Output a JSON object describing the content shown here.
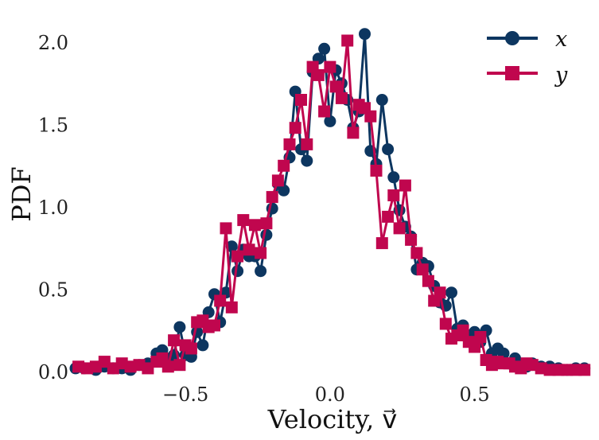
{
  "chart_data": {
    "type": "line",
    "xlabel": "Velocity, v⃗",
    "ylabel": "PDF",
    "xlim": [
      -0.88,
      0.9
    ],
    "ylim": [
      0,
      2.15
    ],
    "xticks": [
      -0.5,
      0.0,
      0.5
    ],
    "xtick_labels": [
      "−0.5",
      "0.0",
      "0.5"
    ],
    "yticks": [
      0.0,
      0.5,
      1.0,
      1.5,
      2.0
    ],
    "ytick_labels": [
      "0.0",
      "0.5",
      "1.0",
      "1.5",
      "2.0"
    ],
    "grid": false,
    "legend_position": "top-right",
    "series": [
      {
        "name": "x",
        "color": "#0d3660",
        "marker": "circle",
        "x": [
          -0.88,
          -0.85,
          -0.81,
          -0.78,
          -0.75,
          -0.72,
          -0.69,
          -0.66,
          -0.63,
          -0.6,
          -0.58,
          -0.56,
          -0.54,
          -0.52,
          -0.5,
          -0.48,
          -0.46,
          -0.44,
          -0.42,
          -0.4,
          -0.38,
          -0.36,
          -0.34,
          -0.32,
          -0.3,
          -0.28,
          -0.26,
          -0.24,
          -0.22,
          -0.2,
          -0.18,
          -0.16,
          -0.14,
          -0.12,
          -0.1,
          -0.08,
          -0.06,
          -0.04,
          -0.02,
          0.0,
          0.02,
          0.04,
          0.06,
          0.08,
          0.1,
          0.12,
          0.14,
          0.16,
          0.18,
          0.2,
          0.22,
          0.24,
          0.26,
          0.28,
          0.3,
          0.32,
          0.34,
          0.36,
          0.38,
          0.4,
          0.42,
          0.44,
          0.46,
          0.48,
          0.5,
          0.52,
          0.54,
          0.56,
          0.58,
          0.6,
          0.62,
          0.64,
          0.66,
          0.68,
          0.7,
          0.73,
          0.76,
          0.79,
          0.82,
          0.85,
          0.88
        ],
        "y": [
          0.02,
          0.02,
          0.01,
          0.03,
          0.02,
          0.02,
          0.01,
          0.04,
          0.05,
          0.11,
          0.13,
          0.07,
          0.1,
          0.27,
          0.1,
          0.09,
          0.24,
          0.16,
          0.36,
          0.47,
          0.3,
          0.48,
          0.76,
          0.61,
          0.74,
          0.7,
          0.7,
          0.61,
          0.83,
          0.99,
          1.14,
          1.1,
          1.3,
          1.7,
          1.35,
          1.28,
          1.82,
          1.9,
          1.96,
          1.52,
          1.83,
          1.75,
          1.65,
          1.48,
          1.58,
          2.05,
          1.34,
          1.26,
          1.65,
          1.35,
          1.18,
          0.98,
          0.88,
          0.82,
          0.62,
          0.66,
          0.64,
          0.52,
          0.42,
          0.4,
          0.48,
          0.26,
          0.28,
          0.22,
          0.24,
          0.18,
          0.25,
          0.11,
          0.14,
          0.11,
          0.05,
          0.08,
          0.04,
          0.03,
          0.05,
          0.03,
          0.03,
          0.02,
          0.01,
          0.02,
          0.02
        ]
      },
      {
        "name": "y",
        "color": "#c0064e",
        "marker": "square",
        "x": [
          -0.87,
          -0.84,
          -0.81,
          -0.78,
          -0.75,
          -0.72,
          -0.69,
          -0.66,
          -0.63,
          -0.6,
          -0.58,
          -0.56,
          -0.54,
          -0.52,
          -0.5,
          -0.48,
          -0.46,
          -0.44,
          -0.42,
          -0.4,
          -0.38,
          -0.36,
          -0.34,
          -0.32,
          -0.3,
          -0.28,
          -0.26,
          -0.24,
          -0.22,
          -0.2,
          -0.18,
          -0.16,
          -0.14,
          -0.12,
          -0.1,
          -0.08,
          -0.06,
          -0.04,
          -0.02,
          0.0,
          0.02,
          0.04,
          0.06,
          0.08,
          0.1,
          0.12,
          0.14,
          0.16,
          0.18,
          0.2,
          0.22,
          0.24,
          0.26,
          0.28,
          0.3,
          0.32,
          0.34,
          0.36,
          0.38,
          0.4,
          0.42,
          0.44,
          0.46,
          0.48,
          0.5,
          0.52,
          0.54,
          0.56,
          0.58,
          0.6,
          0.62,
          0.64,
          0.66,
          0.68,
          0.7,
          0.73,
          0.76,
          0.79,
          0.82,
          0.85,
          0.88
        ],
        "y": [
          0.03,
          0.02,
          0.03,
          0.06,
          0.02,
          0.05,
          0.03,
          0.04,
          0.02,
          0.06,
          0.08,
          0.03,
          0.19,
          0.04,
          0.16,
          0.14,
          0.3,
          0.31,
          0.27,
          0.28,
          0.43,
          0.87,
          0.39,
          0.7,
          0.92,
          0.74,
          0.89,
          0.72,
          0.9,
          1.06,
          1.16,
          1.25,
          1.38,
          1.48,
          1.65,
          1.38,
          1.85,
          1.8,
          1.58,
          1.85,
          1.73,
          1.66,
          2.01,
          1.45,
          1.62,
          1.6,
          1.55,
          1.22,
          0.78,
          0.94,
          1.07,
          0.87,
          1.13,
          0.8,
          0.72,
          0.62,
          0.55,
          0.43,
          0.48,
          0.29,
          0.2,
          0.22,
          0.25,
          0.18,
          0.15,
          0.21,
          0.07,
          0.04,
          0.06,
          0.05,
          0.05,
          0.03,
          0.02,
          0.05,
          0.04,
          0.02,
          0.01,
          0.01,
          0.01,
          0.01,
          0.01
        ]
      }
    ]
  }
}
